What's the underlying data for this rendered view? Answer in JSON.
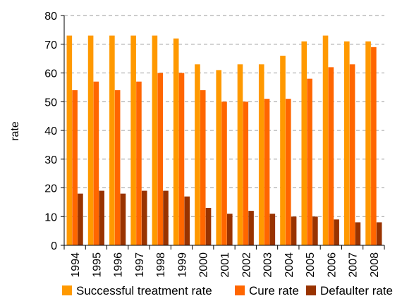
{
  "chart_data": {
    "type": "bar",
    "title": "",
    "xlabel": "",
    "ylabel": "rate",
    "ylim": [
      0,
      80
    ],
    "yticks": [
      0,
      10,
      20,
      30,
      40,
      50,
      60,
      70,
      80
    ],
    "grid": "horizontal-dashed",
    "legend_position": "bottom",
    "categories": [
      "1994",
      "1995",
      "1996",
      "1997",
      "1998",
      "1999",
      "2000",
      "2001",
      "2002",
      "2003",
      "2004",
      "2005",
      "2006",
      "2007",
      "2008"
    ],
    "series": [
      {
        "name": "Successful treatment rate",
        "color": "#FF9900",
        "values": [
          73,
          73,
          73,
          73,
          73,
          72,
          63,
          61,
          63,
          63,
          66,
          71,
          73,
          71,
          71
        ]
      },
      {
        "name": "Cure rate",
        "color": "#FF6600",
        "values": [
          54,
          57,
          54,
          57,
          60,
          60,
          54,
          50,
          50,
          51,
          51,
          58,
          62,
          63,
          69
        ]
      },
      {
        "name": "Defaulter rate",
        "color": "#993300",
        "values": [
          18,
          19,
          18,
          19,
          19,
          17,
          13,
          11,
          12,
          11,
          10,
          10,
          9,
          8,
          8
        ]
      }
    ]
  }
}
